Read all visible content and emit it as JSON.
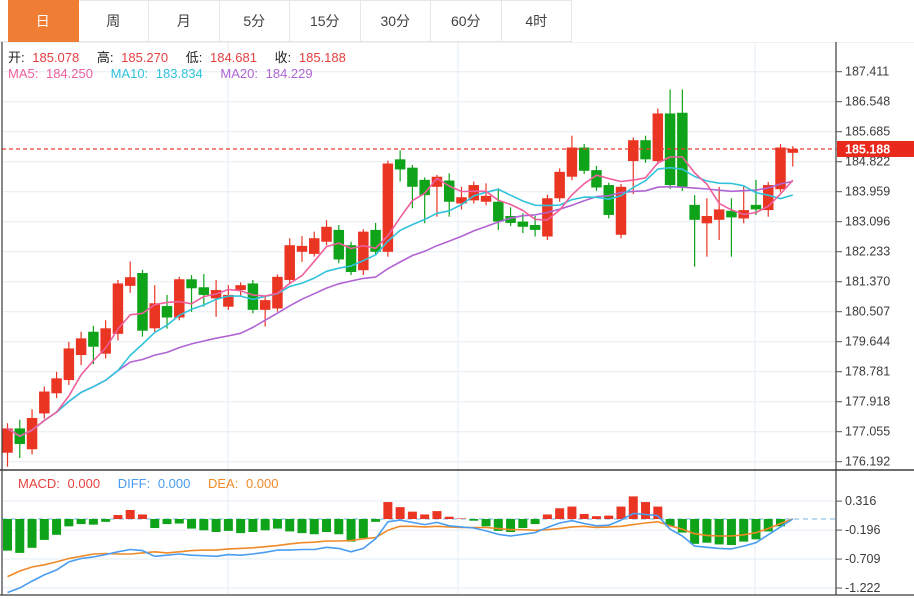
{
  "tabs": {
    "items": [
      {
        "label": "日",
        "active": true
      },
      {
        "label": "周",
        "active": false
      },
      {
        "label": "月",
        "active": false
      },
      {
        "label": "5分",
        "active": false
      },
      {
        "label": "15分",
        "active": false
      },
      {
        "label": "30分",
        "active": false
      },
      {
        "label": "60分",
        "active": false
      },
      {
        "label": "4时",
        "active": false
      }
    ]
  },
  "quote_bar": {
    "open_label": "开:",
    "open": "185.078",
    "high_label": "高:",
    "high": "185.270",
    "low_label": "低:",
    "low": "184.681",
    "close_label": "收:",
    "close": "185.188"
  },
  "ma_bar": {
    "ma5_label": "MA5:",
    "ma5": "184.250",
    "ma10_label": "MA10:",
    "ma10": "183.834",
    "ma20_label": "MA20:",
    "ma20": "184.229"
  },
  "macd_bar": {
    "macd_label": "MACD:",
    "macd": "0.000",
    "diff_label": "DIFF:",
    "diff": "0.000",
    "dea_label": "DEA:",
    "dea": "0.000"
  },
  "price_line": {
    "value": "185.188"
  },
  "colors": {
    "up": "#ea3523",
    "down": "#0fa31a",
    "ma5": "#ee5f9e",
    "ma10": "#31c3db",
    "ma20": "#b164d4",
    "macd_label": "#e64242",
    "diff": "#4a9df0",
    "dea": "#f08a28",
    "value_red": "#e64040",
    "tab_accent": "#ef7d33",
    "price_box": "#e8291c",
    "grid": "#e3edf5",
    "zero_dash": "#8fc3e8",
    "price_dash": "#f03b2e",
    "border_dark": "#3c3c3c",
    "axis_text": "#3b3b3b"
  },
  "chart_data": {
    "type": "candlestick",
    "x_count": 65,
    "price_axis_labels": [
      "187.411",
      "186.548",
      "185.685",
      "184.822",
      "183.959",
      "183.096",
      "182.233",
      "181.370",
      "180.507",
      "179.644",
      "178.781",
      "177.918",
      "177.055",
      "176.192"
    ],
    "price_ylim": [
      176.192,
      187.411
    ],
    "current_price": 185.188,
    "candles_ohlc": [
      [
        176.45,
        177.3,
        176.05,
        177.15
      ],
      [
        177.15,
        177.4,
        176.3,
        176.7
      ],
      [
        176.55,
        177.7,
        176.4,
        177.45
      ],
      [
        177.58,
        178.35,
        177.43,
        178.21
      ],
      [
        178.16,
        178.78,
        178.02,
        178.59
      ],
      [
        178.54,
        179.64,
        178.4,
        179.45
      ],
      [
        179.26,
        179.93,
        178.97,
        179.74
      ],
      [
        179.93,
        180.1,
        179.0,
        179.5
      ],
      [
        179.3,
        180.26,
        179.16,
        180.03
      ],
      [
        179.87,
        181.42,
        179.68,
        181.32
      ],
      [
        181.25,
        181.95,
        181.05,
        181.5
      ],
      [
        181.62,
        181.71,
        179.79,
        179.96
      ],
      [
        180.03,
        181.27,
        179.92,
        180.75
      ],
      [
        180.67,
        180.99,
        180.02,
        180.34
      ],
      [
        180.34,
        181.51,
        180.26,
        181.44
      ],
      [
        181.44,
        181.56,
        180.5,
        181.18
      ],
      [
        181.21,
        181.59,
        180.65,
        180.99
      ],
      [
        180.89,
        181.42,
        180.36,
        181.13
      ],
      [
        180.65,
        181.27,
        180.56,
        180.99
      ],
      [
        181.13,
        181.35,
        180.95,
        181.27
      ],
      [
        181.32,
        181.42,
        180.46,
        180.56
      ],
      [
        180.56,
        180.94,
        180.08,
        180.84
      ],
      [
        180.6,
        181.58,
        180.51,
        181.51
      ],
      [
        181.42,
        182.62,
        181.32,
        182.42
      ],
      [
        182.23,
        182.68,
        181.94,
        182.4
      ],
      [
        182.17,
        182.81,
        182.09,
        182.62
      ],
      [
        182.52,
        183.14,
        182.42,
        182.95
      ],
      [
        182.86,
        183.0,
        181.9,
        182.01
      ],
      [
        182.42,
        182.52,
        181.56,
        181.65
      ],
      [
        181.7,
        182.88,
        181.56,
        182.81
      ],
      [
        182.86,
        183.06,
        182.13,
        182.23
      ],
      [
        182.23,
        184.85,
        182.09,
        184.77
      ],
      [
        184.89,
        185.15,
        184.25,
        184.6
      ],
      [
        184.65,
        184.73,
        183.48,
        184.1
      ],
      [
        184.3,
        184.37,
        183.05,
        183.86
      ],
      [
        184.1,
        184.44,
        183.24,
        184.39
      ],
      [
        184.28,
        184.49,
        183.24,
        183.67
      ],
      [
        183.62,
        184.1,
        183.45,
        183.8
      ],
      [
        183.71,
        184.25,
        183.62,
        184.15
      ],
      [
        183.67,
        184.2,
        183.57,
        183.84
      ],
      [
        183.67,
        184.06,
        182.86,
        183.1
      ],
      [
        183.26,
        183.51,
        182.97,
        183.06
      ],
      [
        183.1,
        183.34,
        182.77,
        182.95
      ],
      [
        183.0,
        183.26,
        182.67,
        182.86
      ],
      [
        182.67,
        183.87,
        182.57,
        183.77
      ],
      [
        183.77,
        184.63,
        183.67,
        184.53
      ],
      [
        184.39,
        185.57,
        184.29,
        185.23
      ],
      [
        185.23,
        185.33,
        184.47,
        184.56
      ],
      [
        184.58,
        184.7,
        183.98,
        184.08
      ],
      [
        184.15,
        184.22,
        183.19,
        183.29
      ],
      [
        182.72,
        184.18,
        182.62,
        184.1
      ],
      [
        184.84,
        185.52,
        183.89,
        185.44
      ],
      [
        185.44,
        185.57,
        184.79,
        184.89
      ],
      [
        184.84,
        186.35,
        184.74,
        186.21
      ],
      [
        186.21,
        186.9,
        184.04,
        184.15
      ],
      [
        186.23,
        186.9,
        183.98,
        184.1
      ],
      [
        183.58,
        183.86,
        181.8,
        183.15
      ],
      [
        183.05,
        183.77,
        182.09,
        183.26
      ],
      [
        183.15,
        184.1,
        182.57,
        183.45
      ],
      [
        183.41,
        183.77,
        182.09,
        183.22
      ],
      [
        183.19,
        184.1,
        183.05,
        183.43
      ],
      [
        183.58,
        184.3,
        183.29,
        183.45
      ],
      [
        183.43,
        184.24,
        183.24,
        184.15
      ],
      [
        184.03,
        185.33,
        183.94,
        185.23
      ],
      [
        185.078,
        185.27,
        184.681,
        185.188
      ]
    ],
    "ma_periods": [
      5,
      10,
      20
    ],
    "macd": {
      "axis_labels": [
        "0.316",
        "-0.196",
        "-0.709",
        "-1.222"
      ],
      "hist": [
        -0.56,
        -0.6,
        -0.51,
        -0.37,
        -0.28,
        -0.13,
        -0.09,
        -0.1,
        -0.05,
        0.07,
        0.16,
        0.08,
        -0.16,
        -0.09,
        -0.08,
        -0.17,
        -0.2,
        -0.23,
        -0.21,
        -0.25,
        -0.23,
        -0.2,
        -0.17,
        -0.22,
        -0.25,
        -0.27,
        -0.23,
        -0.27,
        -0.4,
        -0.34,
        -0.05,
        0.3,
        0.21,
        0.13,
        0.08,
        0.14,
        0.04,
        0.01,
        -0.03,
        -0.13,
        -0.21,
        -0.23,
        -0.16,
        -0.09,
        0.08,
        0.19,
        0.22,
        0.09,
        0.05,
        0.06,
        0.22,
        0.4,
        0.3,
        0.22,
        -0.13,
        -0.24,
        -0.44,
        -0.42,
        -0.45,
        -0.46,
        -0.4,
        -0.36,
        -0.22,
        -0.13,
        0.0
      ],
      "diff": [
        -1.3,
        -1.22,
        -1.1,
        -0.99,
        -0.9,
        -0.76,
        -0.7,
        -0.67,
        -0.63,
        -0.58,
        -0.54,
        -0.56,
        -0.66,
        -0.64,
        -0.62,
        -0.64,
        -0.65,
        -0.66,
        -0.63,
        -0.64,
        -0.62,
        -0.59,
        -0.55,
        -0.55,
        -0.54,
        -0.54,
        -0.5,
        -0.52,
        -0.58,
        -0.52,
        -0.35,
        -0.05,
        -0.02,
        -0.06,
        -0.1,
        -0.06,
        -0.12,
        -0.14,
        -0.16,
        -0.21,
        -0.27,
        -0.3,
        -0.27,
        -0.24,
        -0.15,
        -0.07,
        -0.03,
        -0.08,
        -0.12,
        -0.11,
        -0.02,
        0.1,
        0.08,
        0.06,
        -0.18,
        -0.3,
        -0.48,
        -0.5,
        -0.52,
        -0.53,
        -0.48,
        -0.42,
        -0.28,
        -0.14,
        0.0
      ],
      "dea": [
        -1.02,
        -0.92,
        -0.85,
        -0.81,
        -0.76,
        -0.7,
        -0.66,
        -0.62,
        -0.61,
        -0.62,
        -0.62,
        -0.6,
        -0.58,
        -0.6,
        -0.58,
        -0.56,
        -0.55,
        -0.55,
        -0.53,
        -0.52,
        -0.51,
        -0.49,
        -0.47,
        -0.44,
        -0.42,
        -0.41,
        -0.39,
        -0.39,
        -0.38,
        -0.35,
        -0.33,
        -0.2,
        -0.13,
        -0.13,
        -0.14,
        -0.13,
        -0.14,
        -0.15,
        -0.15,
        -0.15,
        -0.17,
        -0.19,
        -0.19,
        -0.2,
        -0.19,
        -0.17,
        -0.14,
        -0.13,
        -0.15,
        -0.14,
        -0.13,
        -0.1,
        -0.07,
        -0.05,
        -0.12,
        -0.18,
        -0.26,
        -0.29,
        -0.3,
        -0.3,
        -0.28,
        -0.24,
        -0.17,
        -0.08,
        0.0
      ]
    }
  }
}
